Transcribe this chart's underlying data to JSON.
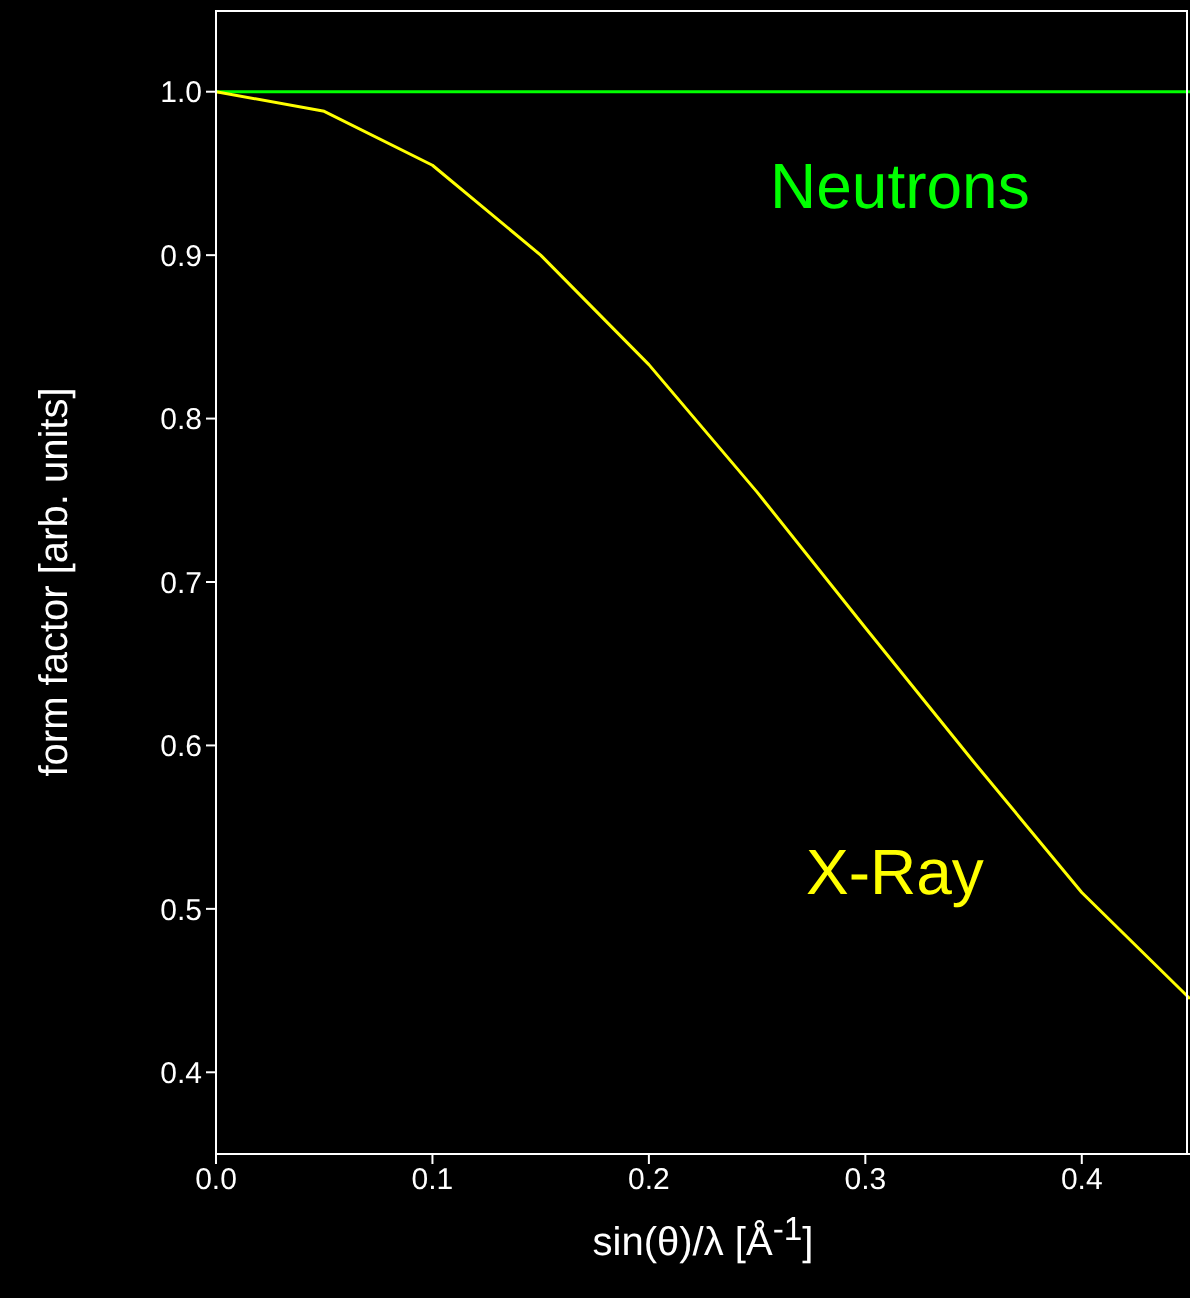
{
  "chart_data": {
    "type": "line",
    "xlabel": "sin(θ)/λ  [Å$^{-1}$]",
    "ylabel": "form factor [arb. units]",
    "xlim": [
      0,
      0.45
    ],
    "ylim": [
      0.35,
      1.05
    ],
    "xticks": [
      {
        "value": 0,
        "label": "0.0"
      },
      0.1,
      0.2,
      0.3,
      0.4
    ],
    "yticks": [
      0.4,
      0.5,
      0.6,
      0.7,
      0.8,
      0.9,
      {
        "value": 1,
        "label": "1.0"
      }
    ],
    "legend": false,
    "grid": false,
    "marker": "none",
    "line_style": "solid",
    "x": [
      0,
      0.05,
      0.1,
      0.15,
      0.2,
      0.25,
      0.3,
      0.35,
      0.4,
      0.45
    ],
    "series": [
      {
        "name": "Neutrons",
        "color": "#00ff00",
        "values": [
          1,
          1,
          1,
          1,
          1,
          1,
          1,
          1,
          1,
          1
        ]
      },
      {
        "name": "X-Ray",
        "color": "#ffff00",
        "values": [
          1,
          0.988,
          0.955,
          0.9,
          0.833,
          0.755,
          0.672,
          0.59,
          0.51,
          0.445
        ]
      }
    ]
  }
}
